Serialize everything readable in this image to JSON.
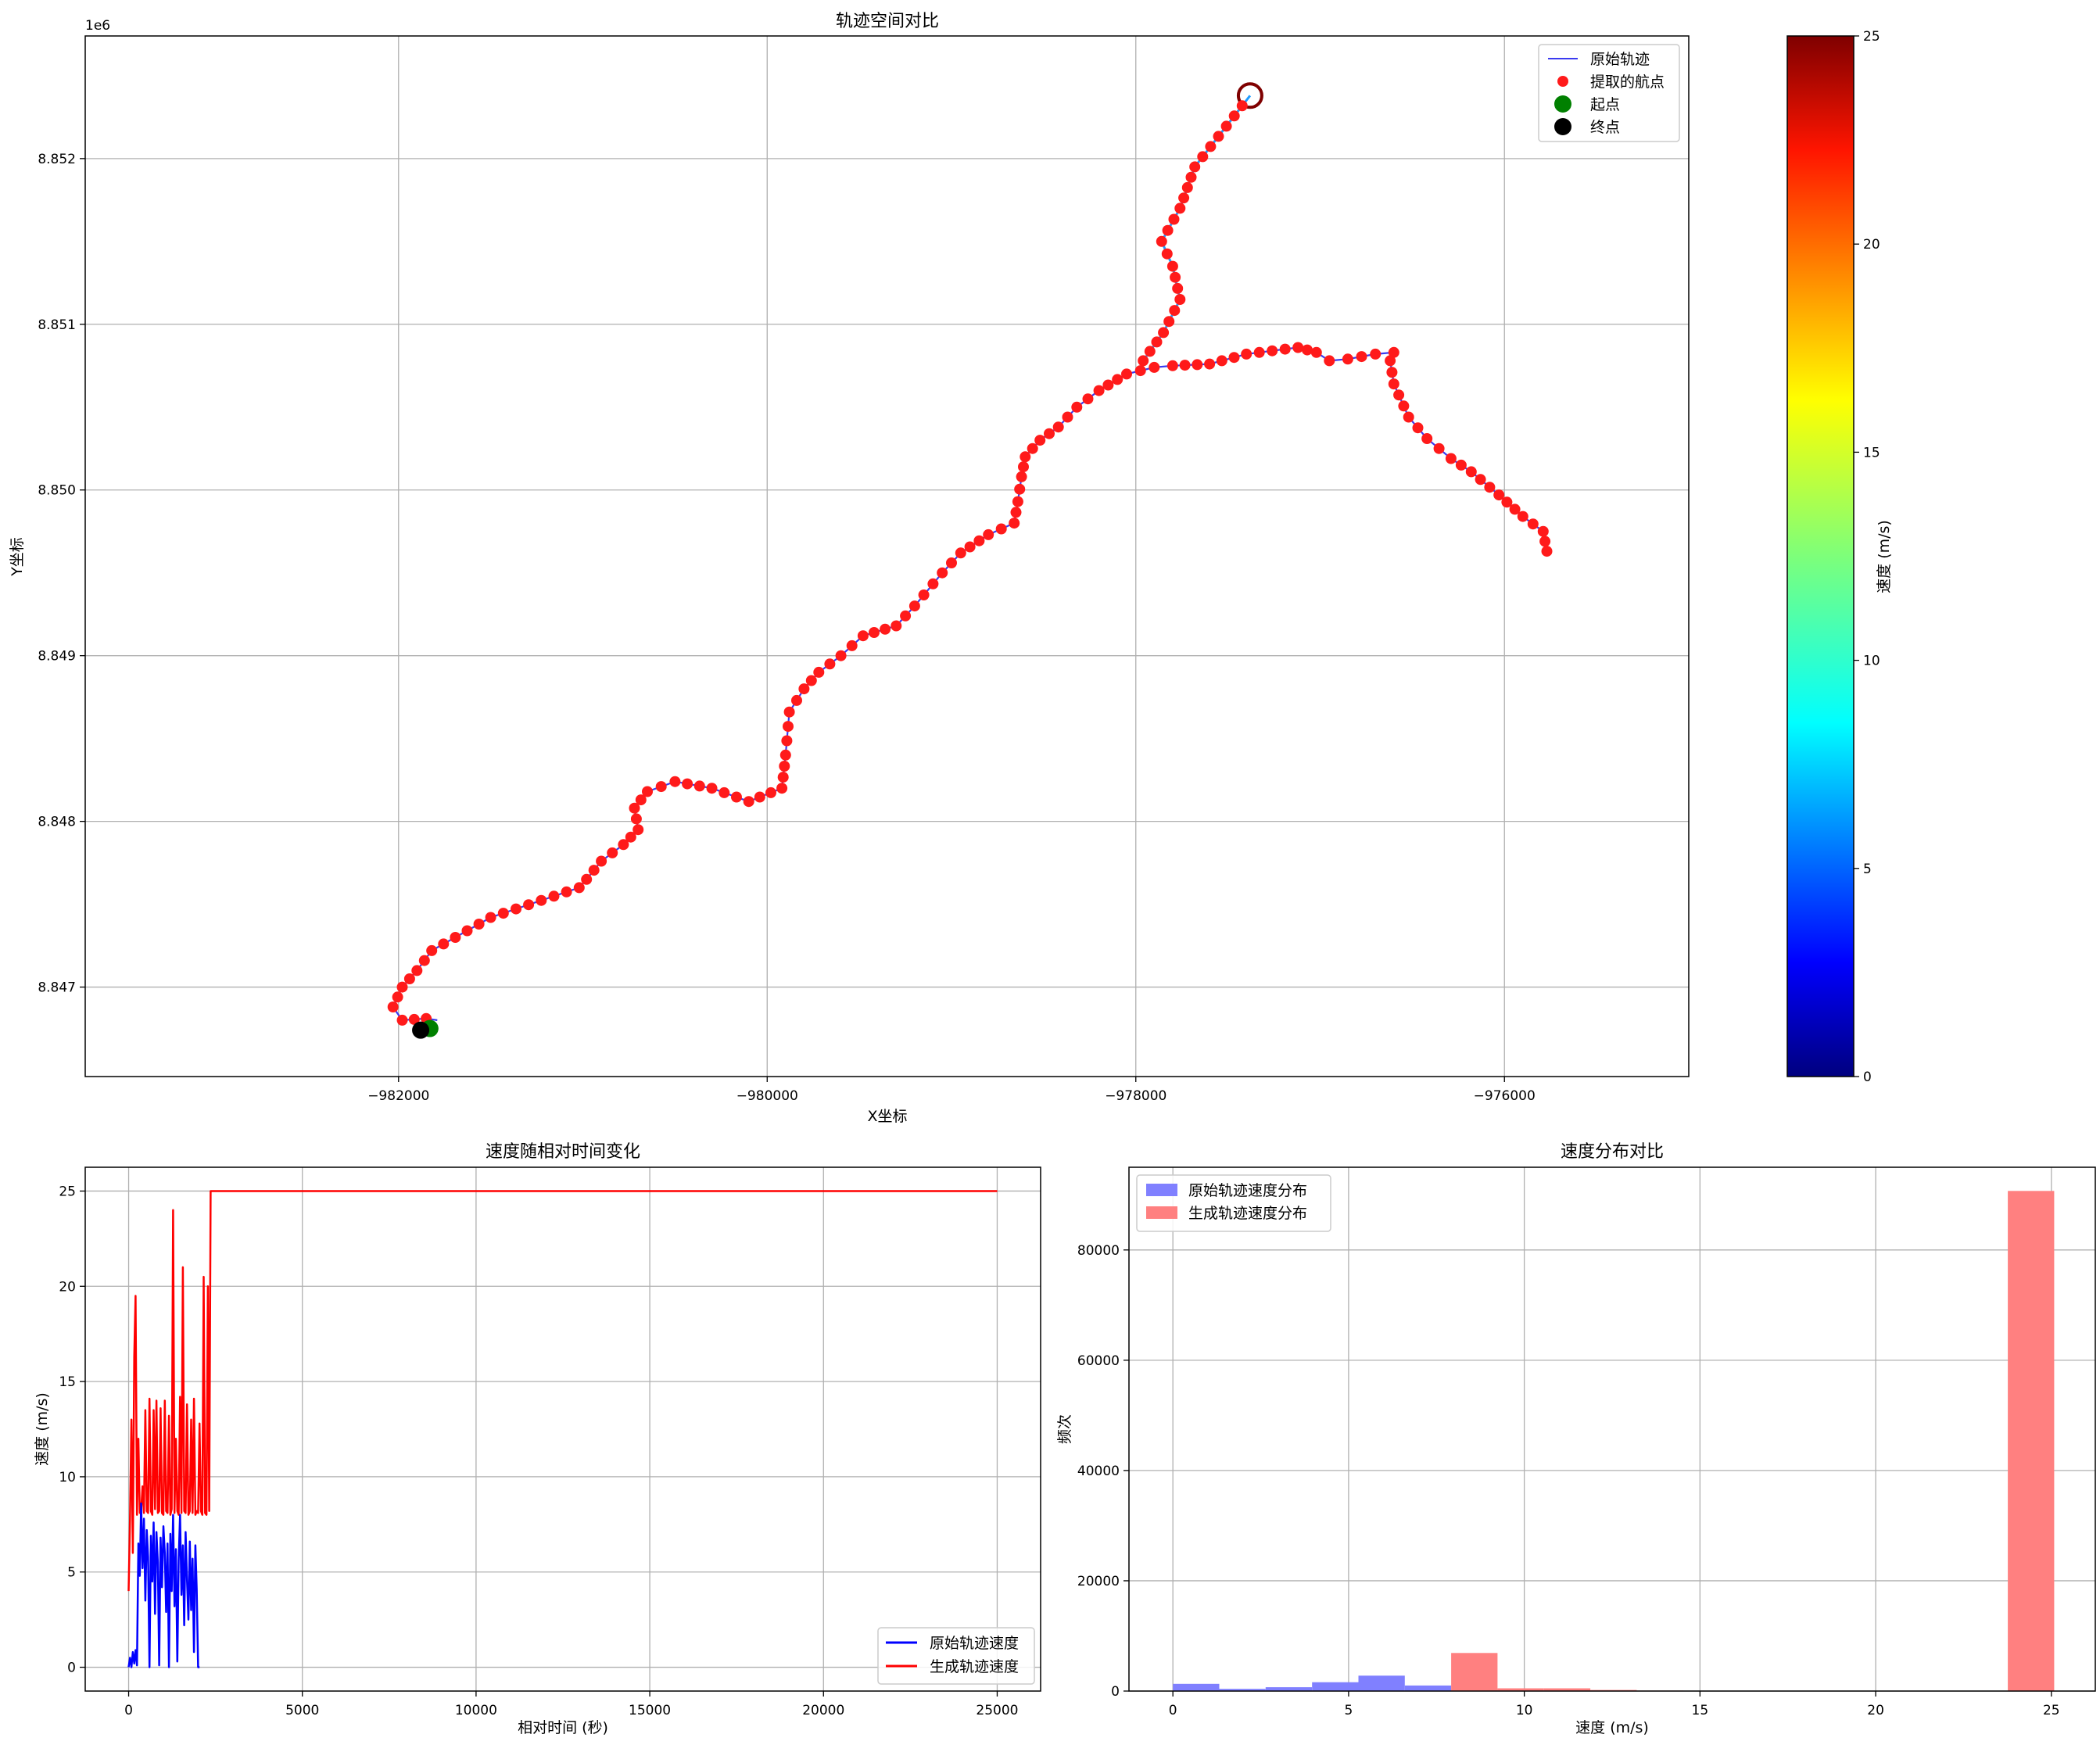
{
  "colors": {
    "orig_line": "#3a3af0",
    "gen_line_a": "#1e9bff",
    "waypoint": "#ff1a1a",
    "start": "#008000",
    "end": "#000000",
    "orig_speed": "#0000ff",
    "gen_speed": "#ff0000",
    "hist_orig": "#8080ff",
    "hist_gen": "#ff8080",
    "grid": "#b0b0b0"
  },
  "chart_data": [
    {
      "type": "scatter",
      "title": "轨迹空间对比",
      "xlabel": "X坐标",
      "ylabel": "Y坐标",
      "y_offset_label": "1e6",
      "xlim": [
        -983700,
        -975000
      ],
      "ylim": [
        8.84646,
        8.85274
      ],
      "xticks": [
        -982000,
        -980000,
        -978000,
        -976000
      ],
      "xtick_labels": [
        "−982000",
        "−980000",
        "−978000",
        "−976000"
      ],
      "yticks": [
        8.847,
        8.848,
        8.849,
        8.85,
        8.851,
        8.852
      ],
      "ytick_labels": [
        "8.847",
        "8.848",
        "8.849",
        "8.850",
        "8.851",
        "8.852"
      ],
      "grid": true,
      "legend_position": "top-right",
      "legend": [
        "原始轨迹",
        "提取的航点",
        "起点",
        "终点"
      ],
      "path": [
        [
          -975770,
          8.84963
        ],
        [
          -975790,
          8.84975
        ],
        [
          -975900,
          8.84984
        ],
        [
          -976030,
          8.84997
        ],
        [
          -976180,
          8.85011
        ],
        [
          -976290,
          8.85019
        ],
        [
          -976420,
          8.85031
        ],
        [
          -976520,
          8.85044
        ],
        [
          -976600,
          8.85064
        ],
        [
          -976620,
          8.85078
        ],
        [
          -976600,
          8.85083
        ],
        [
          -976700,
          8.85082
        ],
        [
          -976850,
          8.85079
        ],
        [
          -976950,
          8.85078
        ],
        [
          -977020,
          8.85083
        ],
        [
          -977120,
          8.85086
        ],
        [
          -977400,
          8.85082
        ],
        [
          -977600,
          8.85076
        ],
        [
          -977800,
          8.85075
        ],
        [
          -977900,
          8.85074
        ],
        [
          -978050,
          8.8507
        ],
        [
          -978200,
          8.8506
        ],
        [
          -978320,
          8.8505
        ],
        [
          -978420,
          8.85038
        ],
        [
          -978520,
          8.8503
        ],
        [
          -978600,
          8.8502
        ],
        [
          -978620,
          8.85008
        ],
        [
          -978640,
          8.84993
        ],
        [
          -978660,
          8.8498
        ],
        [
          -978800,
          8.84973
        ],
        [
          -978950,
          8.84962
        ],
        [
          -979050,
          8.8495
        ],
        [
          -979200,
          8.8493
        ],
        [
          -979300,
          8.84918
        ],
        [
          -979480,
          8.84912
        ],
        [
          -979600,
          8.849
        ],
        [
          -979720,
          8.8489
        ],
        [
          -979800,
          8.8488
        ],
        [
          -979880,
          8.84866
        ],
        [
          -979900,
          8.8484
        ],
        [
          -979920,
          8.8482
        ],
        [
          -980100,
          8.84812
        ],
        [
          -980300,
          8.8482
        ],
        [
          -980500,
          8.84824
        ],
        [
          -980650,
          8.84818
        ],
        [
          -980720,
          8.84808
        ],
        [
          -980700,
          8.84795
        ],
        [
          -980780,
          8.84786
        ],
        [
          -980900,
          8.84776
        ],
        [
          -980980,
          8.84765
        ],
        [
          -981020,
          8.8476
        ],
        [
          -981500,
          8.84742
        ],
        [
          -981820,
          8.84722
        ],
        [
          -981900,
          8.8471
        ],
        [
          -981980,
          8.847
        ],
        [
          -982030,
          8.84688
        ],
        [
          -981980,
          8.8468
        ],
        [
          -981850,
          8.84681
        ],
        [
          -981790,
          8.8468
        ]
      ],
      "loop_center": [
        -977380,
        8.85238
      ],
      "start": [
        -981830,
        8.84675
      ],
      "end": [
        -981880,
        8.84674
      ],
      "colorbar": {
        "label": "速度 (m/s)",
        "min": 0,
        "max": 25,
        "ticks": [
          0,
          5,
          10,
          15,
          20,
          25
        ]
      }
    },
    {
      "type": "line",
      "title": "速度随相对时间变化",
      "xlabel": "相对时间 (秒)",
      "ylabel": "速度 (m/s)",
      "xlim": [
        -1250,
        26250
      ],
      "ylim": [
        -1.25,
        26.25
      ],
      "xticks": [
        0,
        5000,
        10000,
        15000,
        20000,
        25000
      ],
      "yticks": [
        0,
        5,
        10,
        15,
        20,
        25
      ],
      "grid": true,
      "legend_position": "bottom-right",
      "series": [
        {
          "name": "原始轨迹速度",
          "x": [
            0,
            40,
            80,
            120,
            160,
            200,
            240,
            280,
            320,
            360,
            400,
            440,
            480,
            520,
            560,
            600,
            640,
            680,
            720,
            760,
            800,
            840,
            880,
            920,
            960,
            1000,
            1040,
            1080,
            1120,
            1160,
            1200,
            1240,
            1280,
            1320,
            1360,
            1400,
            1440,
            1480,
            1520,
            1560,
            1600,
            1640,
            1680,
            1720,
            1760,
            1800,
            1840,
            1880,
            1920,
            1960,
            2000,
            2040
          ],
          "values": [
            0,
            0.5,
            0,
            0.8,
            0.2,
            0.9,
            0.1,
            6.5,
            4.8,
            8.6,
            5.2,
            7.8,
            3.5,
            7.2,
            5.8,
            0,
            6.9,
            4.5,
            7.6,
            2.8,
            7.1,
            5.5,
            0.1,
            6.8,
            4.2,
            7.4,
            6.0,
            2.9,
            6.5,
            0,
            7.0,
            4.0,
            8.0,
            3.2,
            6.2,
            0.3,
            5.6,
            8.0,
            3.8,
            6.4,
            2.2,
            7.1,
            4.6,
            2.5,
            6.6,
            3.0,
            5.7,
            0.8,
            6.4,
            4.1,
            0,
            0
          ]
        },
        {
          "name": "生成轨迹速度",
          "x": [
            0,
            40,
            80,
            120,
            160,
            200,
            240,
            280,
            320,
            360,
            400,
            440,
            480,
            520,
            560,
            600,
            640,
            680,
            720,
            760,
            800,
            840,
            880,
            920,
            960,
            1000,
            1040,
            1080,
            1120,
            1160,
            1200,
            1240,
            1280,
            1320,
            1360,
            1400,
            1440,
            1480,
            1520,
            1560,
            1600,
            1640,
            1680,
            1720,
            1760,
            1800,
            1840,
            1880,
            1920,
            1960,
            2000,
            2040,
            2080,
            2120,
            2160,
            2200,
            2240,
            2280,
            2320,
            2360,
            2400,
            2440,
            25000
          ],
          "values": [
            4,
            7.8,
            13,
            6,
            16.3,
            19.5,
            8,
            12,
            8.1,
            8.2,
            9.5,
            8.1,
            13.5,
            8.2,
            8.1,
            14.1,
            8.2,
            8.0,
            13.5,
            8.3,
            14.0,
            8.1,
            8.2,
            13.6,
            8.1,
            8.0,
            14.0,
            8.2,
            8.1,
            13.2,
            8.0,
            8.3,
            24.0,
            8.1,
            12.0,
            8.2,
            8.0,
            14.2,
            8.1,
            21.0,
            8.2,
            8.1,
            13.8,
            8.0,
            8.2,
            13.0,
            8.1,
            14.1,
            8.0,
            8.2,
            8.1,
            12.8,
            8.2,
            8.0,
            20.5,
            8.1,
            8.0,
            20.0,
            8.2,
            25,
            25,
            25,
            25
          ]
        }
      ]
    },
    {
      "type": "bar",
      "title": "速度分布对比",
      "xlabel": "速度 (m/s)",
      "ylabel": "频次",
      "xlim": [
        -1.25,
        26.25
      ],
      "ylim": [
        0,
        95000
      ],
      "xticks": [
        0,
        5,
        10,
        15,
        20,
        25
      ],
      "yticks": [
        0,
        20000,
        40000,
        60000,
        80000
      ],
      "grid": true,
      "legend_position": "top-left",
      "bin_width": 1.32,
      "series": [
        {
          "name": "原始轨迹速度分布",
          "bin_starts": [
            0,
            1.32,
            2.64,
            3.96,
            5.28,
            6.6,
            7.92
          ],
          "values": [
            1300,
            400,
            700,
            1600,
            2800,
            1000,
            200
          ]
        },
        {
          "name": "生成轨迹速度分布",
          "bin_starts": [
            7.92,
            9.24,
            10.56,
            11.88,
            13.2,
            14.52,
            15.84,
            17.16,
            18.48,
            19.8,
            21.12,
            22.44,
            23.76
          ],
          "values": [
            6900,
            500,
            500,
            200,
            80,
            40,
            40,
            30,
            30,
            40,
            40,
            60,
            90700
          ]
        }
      ]
    }
  ]
}
